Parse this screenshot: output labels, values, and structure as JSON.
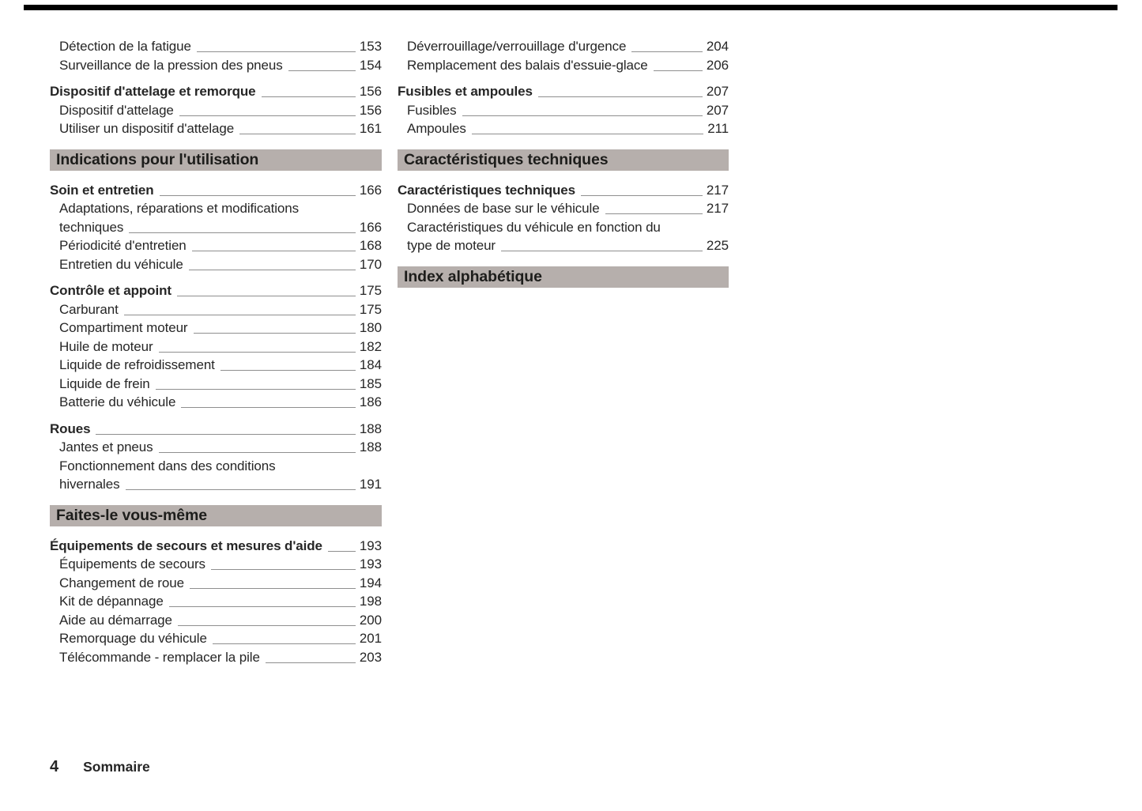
{
  "page": {
    "footer": {
      "page_number": "4",
      "section_label": "Sommaire"
    }
  },
  "colors": {
    "text": "#262626",
    "section_header_bg": "#b6afac",
    "leader_line": "#8f8f8f",
    "top_rule": "#000000"
  },
  "columns": {
    "left": [
      {
        "type": "entry",
        "level": "sub",
        "label": "Détection de la fatigue",
        "page": "153"
      },
      {
        "type": "entry",
        "level": "sub",
        "label": "Surveillance de la pression des pneus",
        "page": "154"
      },
      {
        "type": "entry",
        "level": "main",
        "label": "Dispositif d'attelage et remorque",
        "page": "156"
      },
      {
        "type": "entry",
        "level": "sub",
        "label": "Dispositif d'attelage",
        "page": "156"
      },
      {
        "type": "entry",
        "level": "sub",
        "label": "Utiliser un dispositif d'attelage",
        "page": "161"
      },
      {
        "type": "header",
        "label": "Indications pour l'utilisation"
      },
      {
        "type": "entry",
        "level": "main",
        "label": "Soin et entretien",
        "page": "166"
      },
      {
        "type": "entry",
        "level": "sub",
        "label": "Adaptations, réparations et modifications",
        "label2": "techniques",
        "page": "166"
      },
      {
        "type": "entry",
        "level": "sub",
        "label": "Périodicité d'entretien",
        "page": "168"
      },
      {
        "type": "entry",
        "level": "sub",
        "label": "Entretien du véhicule",
        "page": "170"
      },
      {
        "type": "entry",
        "level": "main",
        "label": "Contrôle et appoint",
        "page": "175"
      },
      {
        "type": "entry",
        "level": "sub",
        "label": "Carburant",
        "page": "175"
      },
      {
        "type": "entry",
        "level": "sub",
        "label": "Compartiment moteur",
        "page": "180"
      },
      {
        "type": "entry",
        "level": "sub",
        "label": "Huile de moteur",
        "page": "182"
      },
      {
        "type": "entry",
        "level": "sub",
        "label": "Liquide de refroidissement",
        "page": "184"
      },
      {
        "type": "entry",
        "level": "sub",
        "label": "Liquide de frein",
        "page": "185"
      },
      {
        "type": "entry",
        "level": "sub",
        "label": "Batterie du véhicule",
        "page": "186"
      },
      {
        "type": "entry",
        "level": "main",
        "label": "Roues",
        "page": "188"
      },
      {
        "type": "entry",
        "level": "sub",
        "label": "Jantes et pneus",
        "page": "188"
      },
      {
        "type": "entry",
        "level": "sub",
        "label": "Fonctionnement dans des conditions",
        "label2": "hivernales",
        "page": "191"
      },
      {
        "type": "header",
        "label": "Faites-le vous-même"
      },
      {
        "type": "entry",
        "level": "main",
        "label": "Équipements de secours et mesures d'aide",
        "page": "193"
      },
      {
        "type": "entry",
        "level": "sub",
        "label": "Équipements de secours",
        "page": "193"
      },
      {
        "type": "entry",
        "level": "sub",
        "label": "Changement de roue",
        "page": "194"
      },
      {
        "type": "entry",
        "level": "sub",
        "label": "Kit de dépannage",
        "page": "198"
      },
      {
        "type": "entry",
        "level": "sub",
        "label": "Aide au démarrage",
        "page": "200"
      },
      {
        "type": "entry",
        "level": "sub",
        "label": "Remorquage du véhicule",
        "page": "201"
      },
      {
        "type": "entry",
        "level": "sub",
        "label": "Télécommande - remplacer la pile",
        "page": "203"
      }
    ],
    "right": [
      {
        "type": "entry",
        "level": "sub",
        "label": "Déverrouillage/verrouillage d'urgence",
        "page": "204"
      },
      {
        "type": "entry",
        "level": "sub",
        "label": "Remplacement des balais d'essuie-glace",
        "page": "206"
      },
      {
        "type": "entry",
        "level": "main",
        "label": "Fusibles et ampoules",
        "page": "207"
      },
      {
        "type": "entry",
        "level": "sub",
        "label": "Fusibles",
        "page": "207"
      },
      {
        "type": "entry",
        "level": "sub",
        "label": "Ampoules",
        "page": "211"
      },
      {
        "type": "header",
        "label": "Caractéristiques techniques"
      },
      {
        "type": "entry",
        "level": "main",
        "label": "Caractéristiques techniques",
        "page": "217"
      },
      {
        "type": "entry",
        "level": "sub",
        "label": "Données de base sur le véhicule",
        "page": "217"
      },
      {
        "type": "entry",
        "level": "sub",
        "label": "Caractéristiques du véhicule en fonction du",
        "label2": "type de moteur",
        "page": "225"
      },
      {
        "type": "header",
        "label": "Index alphabétique"
      }
    ]
  }
}
